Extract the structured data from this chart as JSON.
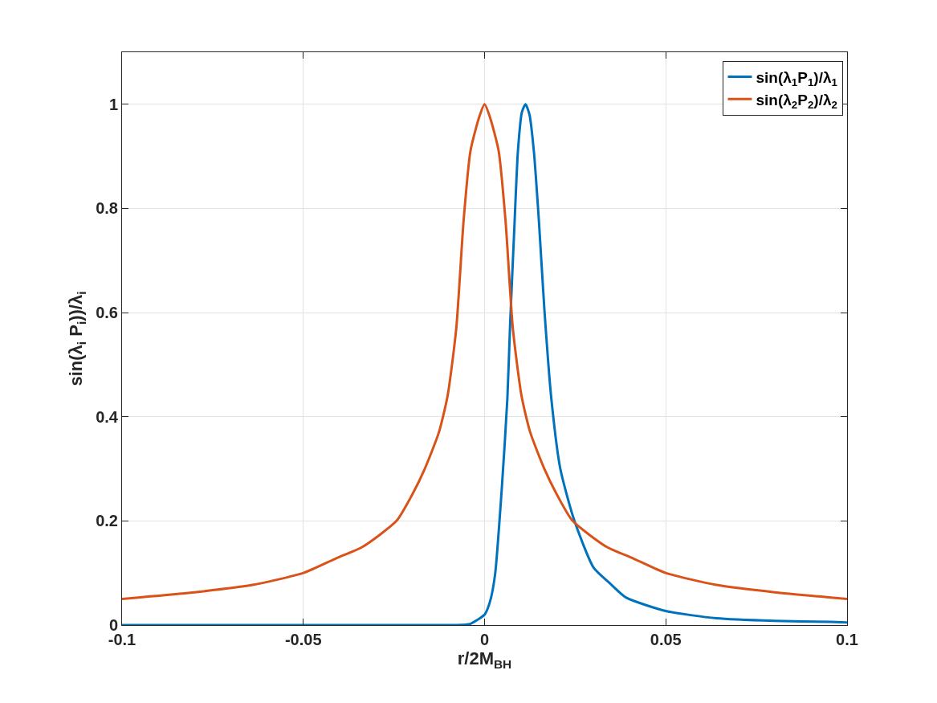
{
  "chart_data": {
    "type": "line",
    "xlabel": "r/2M$_{BH}$",
    "ylabel": "sin(λ$_{i}$ P$_{i}$))/λ$_{i}$",
    "xlim": [
      -0.1,
      0.1
    ],
    "xticks": [
      -0.1,
      -0.05,
      0,
      0.05,
      0.1
    ],
    "ylim": [
      0,
      1.1
    ],
    "yticks": [
      0,
      0.2,
      0.4,
      0.6,
      0.8,
      1
    ],
    "grid": true,
    "legend": "top right",
    "line_style": "solid",
    "marker": "none",
    "series": [
      {
        "name": "sin(λ$_{1}$P$_{1}$)/λ$_{1}$",
        "color": "#0072bd",
        "x": [
          -0.1,
          -0.05,
          -0.02,
          -0.008,
          -0.004,
          -0.002,
          0,
          0.0015,
          0.0029,
          0.0048,
          0.0063,
          0.00705,
          0.0082,
          0.0092,
          0.0103,
          0.0113,
          0.0124,
          0.0136,
          0.015,
          0.0165,
          0.0184,
          0.0209,
          0.0247,
          0.0301,
          0.0346,
          0.039,
          0.05,
          0.064,
          0.08,
          0.0955,
          0.1
        ],
        "values": [
          0,
          0,
          0,
          0,
          0.002,
          0.01,
          0.02,
          0.045,
          0.097,
          0.267,
          0.436,
          0.578,
          0.76,
          0.91,
          0.985,
          1,
          0.98,
          0.91,
          0.775,
          0.606,
          0.436,
          0.3,
          0.202,
          0.11,
          0.08,
          0.053,
          0.027,
          0.013,
          0.008,
          0.006,
          0.005
        ]
      },
      {
        "name": "sin(λ$_{2}$P$_{2}$)/λ$_{2}$",
        "color": "#d95319",
        "x": [
          -0.1,
          -0.0955,
          -0.08,
          -0.064,
          -0.05,
          -0.041,
          -0.0337,
          -0.0243,
          -0.02,
          -0.0165,
          -0.0126,
          -0.0102,
          -0.0078,
          -0.0058,
          -0.0039,
          -0.0015,
          0,
          0.0015,
          0.0039,
          0.0058,
          0.0078,
          0.0102,
          0.0126,
          0.0165,
          0.02,
          0.0243,
          0.0337,
          0.041,
          0.05,
          0.064,
          0.08,
          0.0955,
          0.1
        ],
        "values": [
          0.05,
          0.053,
          0.063,
          0.077,
          0.1,
          0.128,
          0.15,
          0.2,
          0.25,
          0.3,
          0.37,
          0.44,
          0.57,
          0.775,
          0.91,
          0.975,
          1,
          0.975,
          0.91,
          0.775,
          0.57,
          0.44,
          0.37,
          0.3,
          0.25,
          0.2,
          0.15,
          0.128,
          0.1,
          0.077,
          0.063,
          0.053,
          0.05
        ]
      }
    ]
  }
}
